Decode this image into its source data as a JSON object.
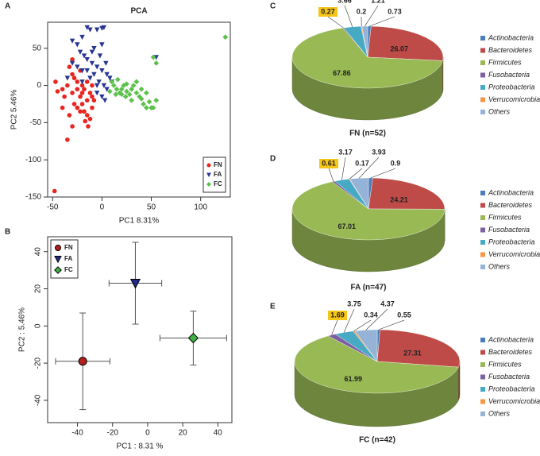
{
  "chart_data": [
    {
      "type": "scatter",
      "panel": "A",
      "title": "PCA",
      "x_label": "PC1  8.31%",
      "y_label": "PC2  5.46%",
      "xlim": [
        -55,
        130
      ],
      "ylim": [
        -150,
        85
      ],
      "xticks": [
        -50,
        0,
        50,
        100
      ],
      "yticks": [
        -150,
        -100,
        -50,
        0,
        50
      ],
      "legend": "lower right",
      "series": [
        {
          "name": "FN",
          "color": "#e8251f",
          "marker": "circle",
          "x": [
            -48,
            -45,
            -47,
            -40,
            -35,
            -30,
            -33,
            -30,
            -28,
            -25,
            -25,
            -22,
            -20,
            -18,
            -15,
            -12,
            -15,
            -10,
            -20,
            -15,
            -25,
            -30,
            -35,
            -38,
            -20,
            -18,
            -12,
            -10,
            -8,
            -22,
            -28,
            -33,
            -17,
            -14,
            -40,
            -30,
            -22,
            -10
          ],
          "y": [
            -142,
            -8,
            5,
            -30,
            -73,
            -55,
            25,
            15,
            10,
            5,
            -5,
            -15,
            -25,
            -35,
            -40,
            -45,
            -20,
            -30,
            0,
            5,
            -30,
            -10,
            0,
            -15,
            -10,
            -5,
            -10,
            -15,
            -20,
            -35,
            -25,
            -40,
            -48,
            -55,
            -5,
            35,
            20,
            0
          ]
        },
        {
          "name": "FA",
          "color": "#283593",
          "marker": "triangle-down",
          "x": [
            -15,
            -12,
            -5,
            0,
            2,
            -20,
            -30,
            -25,
            -22,
            -18,
            -15,
            -10,
            -5,
            0,
            5,
            -8,
            -12,
            -20,
            -25,
            -3,
            2,
            5,
            8,
            -5,
            0,
            3,
            -10,
            -2,
            4,
            -30,
            -35,
            -15,
            -8,
            10,
            -20,
            0,
            55,
            -5
          ],
          "y": [
            78,
            75,
            75,
            77,
            78,
            65,
            60,
            55,
            45,
            40,
            35,
            30,
            25,
            20,
            15,
            15,
            10,
            20,
            25,
            5,
            0,
            -5,
            10,
            -10,
            -15,
            -20,
            45,
            40,
            30,
            30,
            10,
            20,
            50,
            5,
            5,
            55,
            38,
            0
          ]
        },
        {
          "name": "FC",
          "color": "#5cc14b",
          "marker": "diamond",
          "x": [
            125,
            52,
            55,
            10,
            12,
            15,
            18,
            20,
            22,
            25,
            28,
            30,
            32,
            35,
            38,
            40,
            42,
            45,
            48,
            50,
            8,
            14,
            20,
            25,
            35,
            40,
            30,
            45,
            52,
            16,
            24,
            55
          ],
          "y": [
            65,
            38,
            30,
            5,
            0,
            -5,
            -10,
            -5,
            0,
            -8,
            -12,
            -5,
            0,
            -10,
            -15,
            -18,
            -25,
            -30,
            -22,
            -30,
            -8,
            -12,
            -12,
            2,
            5,
            -5,
            -20,
            -10,
            -30,
            8,
            -15,
            -20
          ]
        }
      ]
    },
    {
      "type": "errorbar",
      "panel": "B",
      "x_label": "PC1 : 8.31 %",
      "y_label": "PC2 : 5.46%",
      "xlim": [
        -57,
        48
      ],
      "ylim": [
        -52,
        48
      ],
      "xticks": [
        -40,
        -20,
        0,
        20,
        40
      ],
      "yticks": [
        -40,
        -20,
        0,
        20,
        40
      ],
      "legend": "upper left",
      "series": [
        {
          "name": "FN",
          "color": "#b0201c",
          "marker": "circle",
          "x": -37,
          "y": -19,
          "xerr": 15.5,
          "yerr": 26
        },
        {
          "name": "FA",
          "color": "#1f2a8a",
          "marker": "triangle-down",
          "x": -7,
          "y": 23,
          "xerr": 15,
          "yerr": 22
        },
        {
          "name": "FC",
          "color": "#3cb043",
          "marker": "diamond",
          "x": 26,
          "y": -6.5,
          "xerr": 19,
          "yerr": 14.5
        }
      ]
    },
    {
      "type": "pie",
      "panel": "C",
      "title": "FN (n=52)",
      "highlight": 3,
      "categories": [
        "Actinobacteria",
        "Bacteroidetes",
        "Firmicutes",
        "Fusobacteria",
        "Proteobacteria",
        "Verrucomicrobia",
        "Others"
      ],
      "colors": [
        "#4a7ebb",
        "#be4b48",
        "#98b954",
        "#7d60a0",
        "#46aac5",
        "#f79646",
        "#95b3d7"
      ],
      "values": [
        0.73,
        26.07,
        67.86,
        0.27,
        3.66,
        0.2,
        1.21
      ]
    },
    {
      "type": "pie",
      "panel": "D",
      "title": "FA (n=47)",
      "highlight": 3,
      "categories": [
        "Actinobacteria",
        "Bacteroidetes",
        "Firmicutes",
        "Fusobacteria",
        "Proteobacteria",
        "Verrucomicrobia",
        "Others"
      ],
      "colors": [
        "#4a7ebb",
        "#be4b48",
        "#98b954",
        "#7d60a0",
        "#46aac5",
        "#f79646",
        "#95b3d7"
      ],
      "values": [
        0.9,
        24.21,
        67.01,
        0.61,
        3.17,
        0.17,
        3.93
      ]
    },
    {
      "type": "pie",
      "panel": "E",
      "title": "FC (n=42)",
      "highlight": 3,
      "categories": [
        "Actinobacteria",
        "Bacteroidetes",
        "Firmicutes",
        "Fusobacteria",
        "Proteobacteria",
        "Verrucomicrobia",
        "Others"
      ],
      "colors": [
        "#4a7ebb",
        "#be4b48",
        "#98b954",
        "#7d60a0",
        "#46aac5",
        "#f79646",
        "#95b3d7"
      ],
      "values": [
        0.55,
        27.31,
        61.99,
        1.69,
        3.75,
        0.34,
        4.37
      ]
    }
  ]
}
